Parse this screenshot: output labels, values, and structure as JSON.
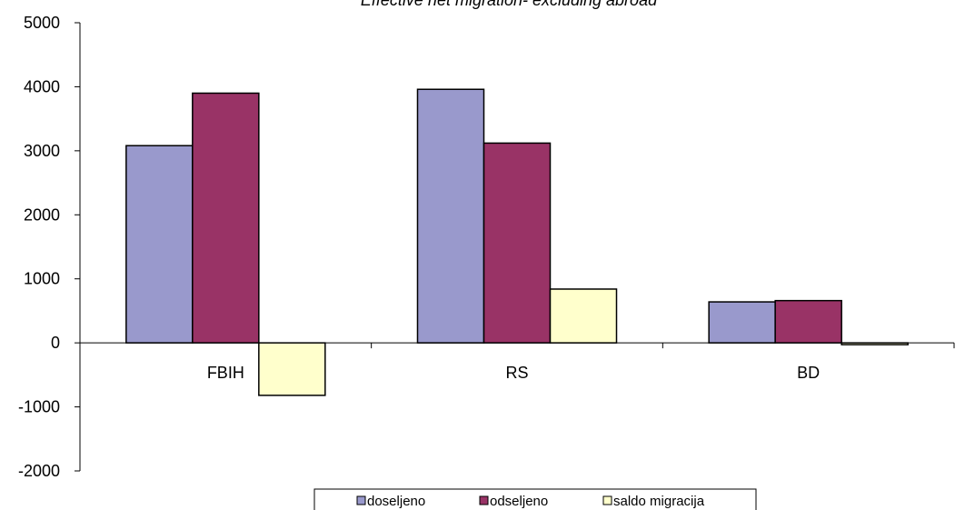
{
  "chart_data": {
    "type": "bar",
    "title": "Effective net migration- excluding abroad",
    "categories": [
      "FBIH",
      "RS",
      "BD"
    ],
    "series": [
      {
        "name": "doseljeno",
        "values": [
          3080,
          3960,
          640
        ],
        "color": "#9999cc"
      },
      {
        "name": "odseljeno",
        "values": [
          3900,
          3120,
          660
        ],
        "color": "#993366"
      },
      {
        "name": "saldo migracija",
        "values": [
          -820,
          840,
          -20
        ],
        "color": "#ffffcc"
      }
    ],
    "ylim": [
      -2000,
      5000
    ],
    "yticks": [
      -2000,
      -1000,
      0,
      1000,
      2000,
      3000,
      4000,
      5000
    ],
    "ytick_labels": [
      "-2000",
      "-1000",
      "0",
      "1000",
      "2000",
      "3000",
      "4000",
      "5000"
    ],
    "grid": false,
    "legend_position": "bottom"
  }
}
